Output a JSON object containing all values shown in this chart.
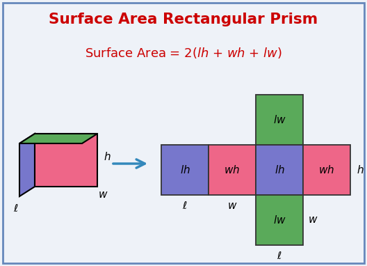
{
  "title": "Surface Area Rectangular Prism",
  "bg_color": "#eef2f8",
  "border_color": "#6688bb",
  "title_color": "#cc0000",
  "formula_color": "#cc0000",
  "arrow_color": "#3388bb",
  "green_color": "#5aaa5a",
  "blue_color": "#7777cc",
  "pink_color": "#ee6688",
  "label_color": "#111111"
}
